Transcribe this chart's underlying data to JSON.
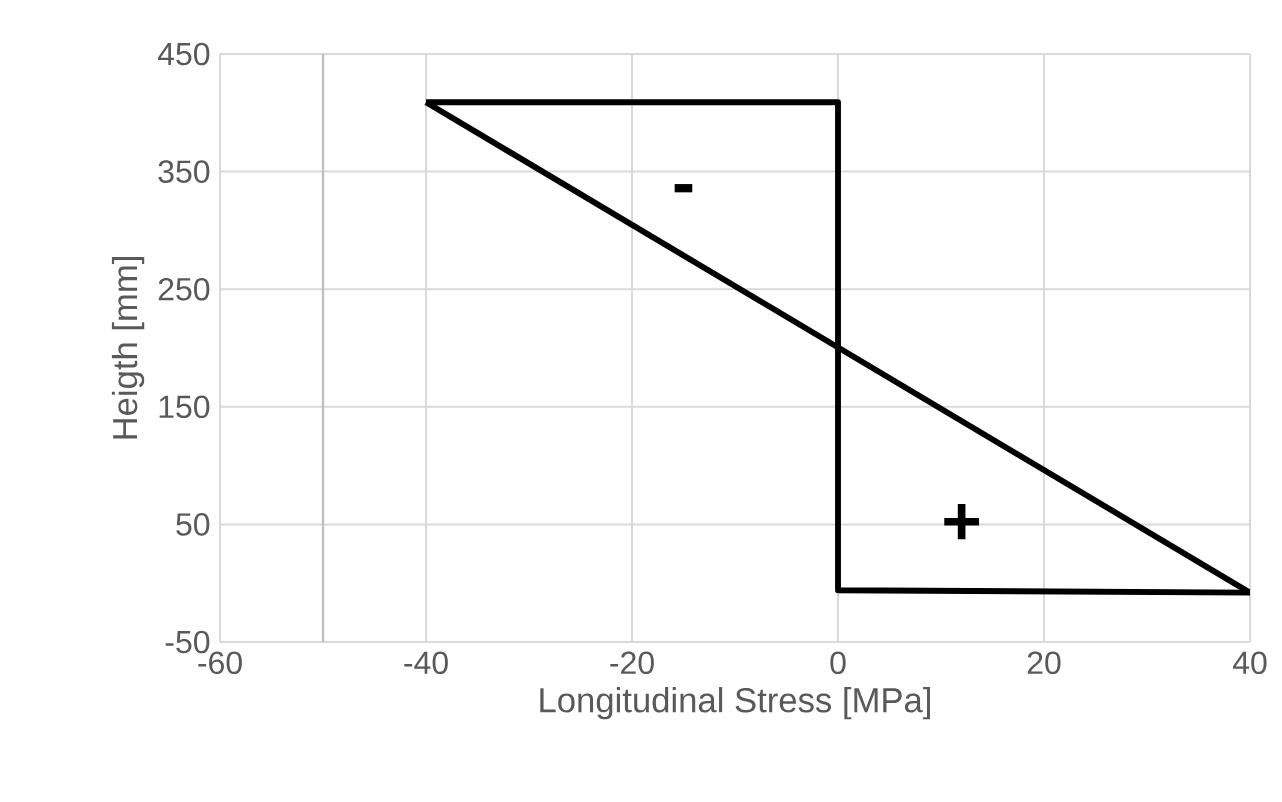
{
  "chart_data": {
    "type": "line",
    "xlabel": "Longitudinal Stress [MPa]",
    "ylabel": "Heigth [mm]",
    "series": [
      {
        "color": "#000000",
        "x": [
          -40,
          0,
          0,
          40
        ],
        "values": [
          409,
          409,
          -6,
          -8
        ]
      },
      {
        "color": "#000000",
        "x": [
          -40,
          40
        ],
        "values": [
          409,
          -8
        ]
      }
    ],
    "xlim": [
      -60,
      40
    ],
    "xticks": [
      -60,
      -40,
      -20,
      0,
      20,
      40
    ],
    "ylim": [
      -50,
      450
    ],
    "yticks": [
      -50,
      50,
      150,
      250,
      350,
      450
    ],
    "grid": true,
    "marker": "none",
    "line_style": "solid",
    "ref_lines": [
      {
        "axis": "x",
        "value": -50,
        "color": "#bfbfbf"
      }
    ],
    "annotations": [
      "-",
      "+"
    ]
  }
}
